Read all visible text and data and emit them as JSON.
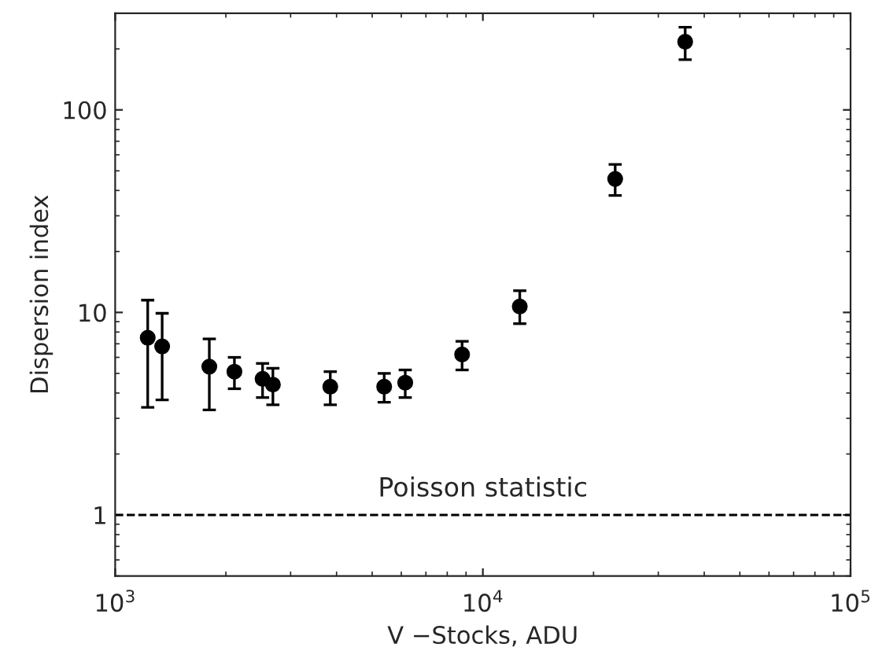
{
  "chart_data": {
    "type": "scatter",
    "xlabel": "V −Stocks, ADU",
    "ylabel": "Dispersion index",
    "log": "xy",
    "marker": "circle",
    "grid": false,
    "legend": false,
    "xlim": [
      1000,
      100000
    ],
    "xticks": [
      {
        "value": 1000,
        "label": "10$^{3}$"
      },
      {
        "value": 10000,
        "label": "10$^{4}$"
      },
      {
        "value": 100000,
        "label": "10$^{5}$"
      }
    ],
    "ylim": [
      0.5,
      300
    ],
    "yticks": [
      1,
      10,
      100
    ],
    "series": [
      {
        "color": "#000000",
        "x": [
          1226,
          1342,
          1803,
          2110,
          2517,
          2685,
          3846,
          5390,
          6150,
          8780,
          12600,
          22900,
          35500
        ],
        "values": [
          7.5,
          6.8,
          5.4,
          5.1,
          4.7,
          4.4,
          4.3,
          4.3,
          4.5,
          6.2,
          10.7,
          45.6,
          217
        ],
        "errors": [
          [
            3.4,
            11.5
          ],
          [
            3.7,
            9.9
          ],
          [
            3.3,
            7.4
          ],
          [
            4.2,
            6.0
          ],
          [
            3.8,
            5.6
          ],
          [
            3.5,
            5.3
          ],
          [
            3.5,
            5.1
          ],
          [
            3.6,
            5.0
          ],
          [
            3.8,
            5.2
          ],
          [
            5.2,
            7.2
          ],
          [
            8.8,
            12.8
          ],
          [
            37.8,
            53.8
          ],
          [
            177,
            256
          ]
        ]
      }
    ],
    "ref_lines": [
      {
        "axis": "y",
        "value": 1,
        "label": "Poisson statistic",
        "color": "#000000",
        "line_style": "dashed"
      }
    ]
  }
}
